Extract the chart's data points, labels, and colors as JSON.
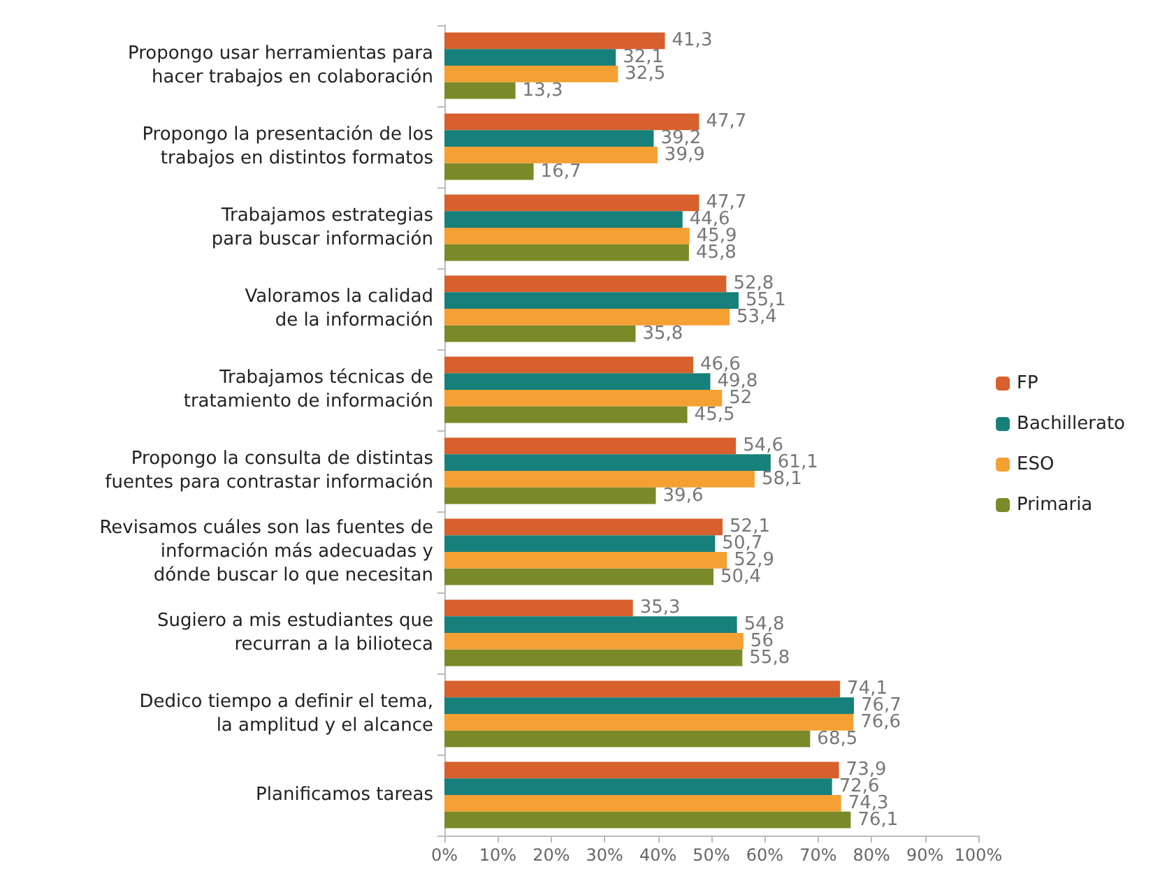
{
  "chart_data": {
    "type": "bar",
    "orientation": "horizontal",
    "categories": [
      "Propongo usar herramientas para\nhacer trabajos en colaboración",
      "Propongo la presentación de los\ntrabajos en distintos formatos",
      "Trabajamos estrategias\npara buscar información",
      "Valoramos la calidad\nde la información",
      "Trabajamos técnicas de\ntratamiento de información",
      "Propongo la consulta de distintas\nfuentes para contrastar información",
      "Revisamos cuáles son las fuentes de\ninformación más adecuadas y\ndónde buscar lo que necesitan",
      "Sugiero a mis estudiantes que\nrecurran a la bilioteca",
      "Dedico tiempo a definir el tema,\nla amplitud y el alcance",
      "Planificamos tareas"
    ],
    "series": [
      {
        "name": "FP",
        "color": "#d8602c",
        "values": [
          41.3,
          47.7,
          47.7,
          52.8,
          46.6,
          54.6,
          52.1,
          35.3,
          74.1,
          73.9
        ],
        "value_labels": [
          "41,3",
          "47,7",
          "47,7",
          "52,8",
          "46,6",
          "54,6",
          "52,1",
          "35,3",
          "74,1",
          "73,9"
        ]
      },
      {
        "name": "Bachillerato",
        "color": "#17807a",
        "values": [
          32.1,
          39.2,
          44.6,
          55.1,
          49.8,
          61.1,
          50.7,
          54.8,
          76.7,
          72.6
        ],
        "value_labels": [
          "32,1",
          "39,2",
          "44,6",
          "55,1",
          "49,8",
          "61,1",
          "50,7",
          "54,8",
          "76,7",
          "72,6"
        ]
      },
      {
        "name": "ESO",
        "color": "#f4a033",
        "values": [
          32.5,
          39.9,
          45.9,
          53.4,
          52,
          58.1,
          52.9,
          56,
          76.6,
          74.3
        ],
        "value_labels": [
          "32,5",
          "39,9",
          "45,9",
          "53,4",
          "52",
          "58,1",
          "52,9",
          "56",
          "76,6",
          "74,3"
        ]
      },
      {
        "name": "Primaria",
        "color": "#7b8a28",
        "values": [
          13.3,
          16.7,
          45.8,
          35.8,
          45.5,
          39.6,
          50.4,
          55.8,
          68.5,
          76.1
        ],
        "value_labels": [
          "13,3",
          "16,7",
          "45,8",
          "35,8",
          "45,5",
          "39,6",
          "50,4",
          "55,8",
          "68,5",
          "76,1"
        ]
      }
    ],
    "xlim": [
      0,
      100
    ],
    "xticks": [
      {
        "value": 0,
        "label": "0%"
      },
      {
        "value": 10,
        "label": "10%"
      },
      {
        "value": 20,
        "label": "20%"
      },
      {
        "value": 30,
        "label": "30%"
      },
      {
        "value": 40,
        "label": "40%"
      },
      {
        "value": 50,
        "label": "50%"
      },
      {
        "value": 60,
        "label": "60%"
      },
      {
        "value": 70,
        "label": "70%"
      },
      {
        "value": 80,
        "label": "80%"
      },
      {
        "value": 90,
        "label": "90%"
      },
      {
        "value": 100,
        "label": "100%"
      }
    ],
    "grid": false,
    "legend": "right"
  }
}
